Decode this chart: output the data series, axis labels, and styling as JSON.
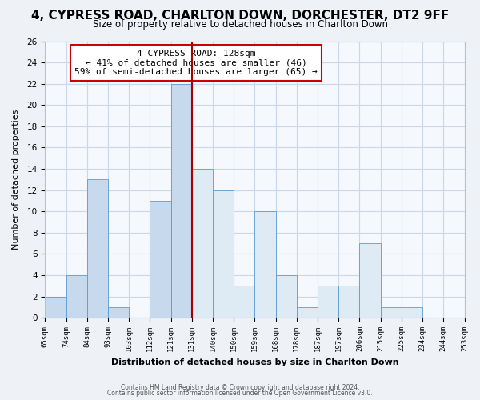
{
  "title": "4, CYPRESS ROAD, CHARLTON DOWN, DORCHESTER, DT2 9FF",
  "subtitle": "Size of property relative to detached houses in Charlton Down",
  "xlabel": "Distribution of detached houses by size in Charlton Down",
  "ylabel": "Number of detached properties",
  "bin_labels": [
    "65sqm",
    "74sqm",
    "84sqm",
    "93sqm",
    "103sqm",
    "112sqm",
    "121sqm",
    "131sqm",
    "140sqm",
    "150sqm",
    "159sqm",
    "168sqm",
    "178sqm",
    "187sqm",
    "197sqm",
    "206sqm",
    "215sqm",
    "225sqm",
    "234sqm",
    "244sqm",
    "253sqm"
  ],
  "bar_values": [
    2,
    4,
    13,
    1,
    0,
    11,
    22,
    14,
    12,
    3,
    10,
    4,
    1,
    3,
    3,
    7,
    1,
    1,
    0,
    0
  ],
  "bar_color_left": "#c6d9ed",
  "bar_color_right": "#deeaf4",
  "bar_edge_color": "#5b9bd5",
  "vline_color": "#aa0000",
  "vline_x": 7,
  "annotation_line1": "4 CYPRESS ROAD: 128sqm",
  "annotation_line2": "← 41% of detached houses are smaller (46)",
  "annotation_line3": "59% of semi-detached houses are larger (65) →",
  "annotation_box_facecolor": "#ffffff",
  "annotation_box_edgecolor": "#cc0000",
  "ylim": [
    0,
    26
  ],
  "yticks": [
    0,
    2,
    4,
    6,
    8,
    10,
    12,
    14,
    16,
    18,
    20,
    22,
    24,
    26
  ],
  "footer1": "Contains HM Land Registry data © Crown copyright and database right 2024.",
  "footer2": "Contains public sector information licensed under the Open Government Licence v3.0.",
  "bg_color": "#eef2f7",
  "plot_bg_color": "#f5f8fc",
  "grid_color": "#c8d8e8",
  "title_fontsize": 11,
  "subtitle_fontsize": 8.5
}
